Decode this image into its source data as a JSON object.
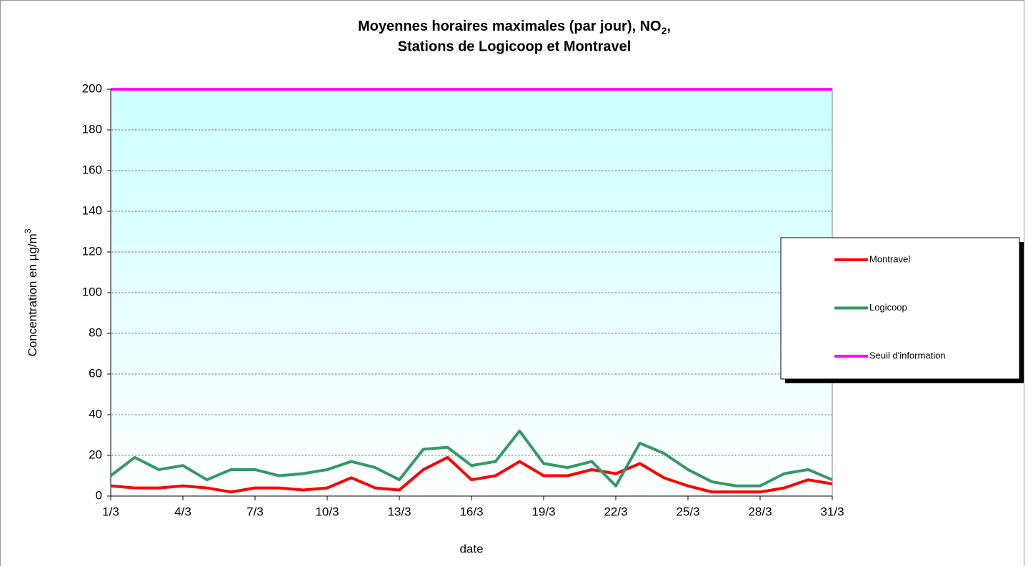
{
  "chart_data": {
    "type": "line",
    "title": {
      "before": "Moyennes horaires maximales (par jour), NO",
      "sub": "2",
      "after": ","
    },
    "subtitle": "Stations de Logicoop et Montravel",
    "x_label": "date",
    "y_label": {
      "text": "Concentration en µg/m",
      "sup": "3"
    },
    "categories": [
      "1/3",
      null,
      null,
      "4/3",
      null,
      null,
      "7/3",
      null,
      null,
      "10/3",
      null,
      null,
      "13/3",
      null,
      null,
      "16/3",
      null,
      null,
      "19/3",
      null,
      null,
      "22/3",
      null,
      null,
      "25/3",
      null,
      null,
      "28/3",
      null,
      null,
      "31/3"
    ],
    "series": [
      {
        "name": "Montravel",
        "color": "#ff0000",
        "values": [
          5,
          4,
          4,
          5,
          4,
          2,
          4,
          4,
          3,
          4,
          9,
          4,
          3,
          13,
          19,
          8,
          10,
          17,
          10,
          10,
          13,
          11,
          16,
          9,
          5,
          2,
          2,
          2,
          4,
          8,
          6
        ]
      },
      {
        "name": "Logicoop",
        "color": "#339966",
        "values": [
          10,
          19,
          13,
          15,
          8,
          13,
          13,
          10,
          11,
          13,
          17,
          14,
          8,
          23,
          24,
          15,
          17,
          32,
          16,
          14,
          17,
          5,
          26,
          21,
          13,
          7,
          5,
          5,
          11,
          13,
          8
        ]
      },
      {
        "name": "Seuil d'information",
        "color": "#ff00ff",
        "values": [
          200,
          200,
          200,
          200,
          200,
          200,
          200,
          200,
          200,
          200,
          200,
          200,
          200,
          200,
          200,
          200,
          200,
          200,
          200,
          200,
          200,
          200,
          200,
          200,
          200,
          200,
          200,
          200,
          200,
          200,
          200
        ]
      }
    ],
    "ylim": [
      0,
      200
    ],
    "yticks": [
      0,
      20,
      40,
      60,
      80,
      100,
      120,
      140,
      160,
      180,
      200
    ],
    "grid": true,
    "legend": "right"
  }
}
